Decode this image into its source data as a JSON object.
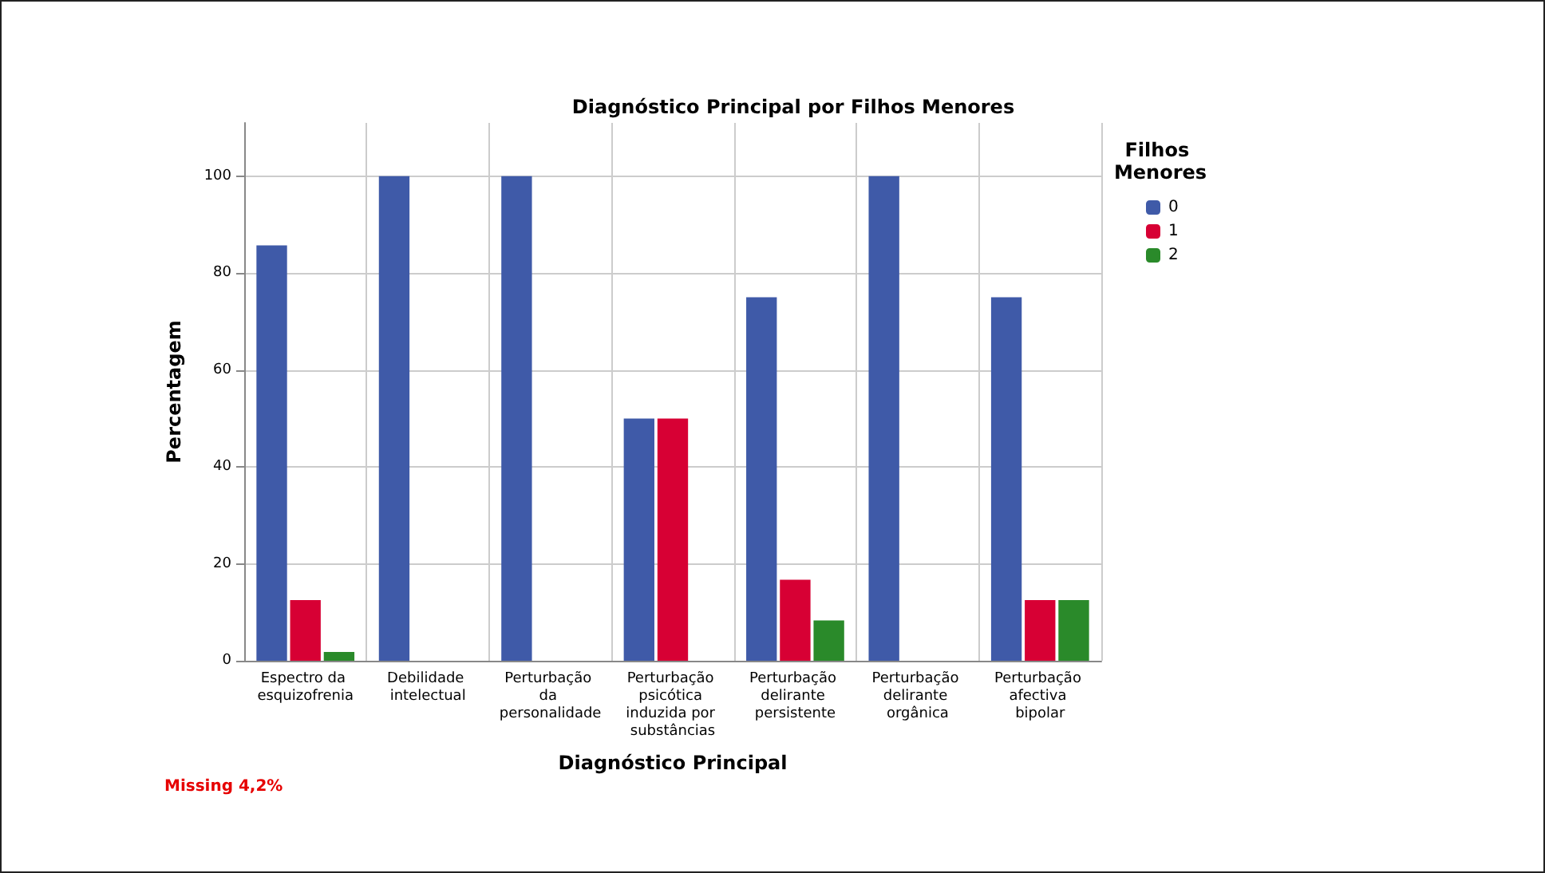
{
  "chart_data": {
    "type": "bar",
    "title": "Diagnóstico Principal por Filhos Menores",
    "xlabel": "Diagnóstico Principal",
    "ylabel": "Percentagem",
    "legend_title": "Filhos Menores",
    "categories": [
      "Espectro da esquizofrenia",
      "Debilidade intelectual",
      "Perturbação da personalidade",
      "Perturbação psicótica induzida por substâncias",
      "Perturbação delirante persistente",
      "Perturbação delirante orgânica",
      "Perturbação afectiva bipolar"
    ],
    "series": [
      {
        "name": "0",
        "color": "#3f5aa8",
        "values": [
          85.7,
          100,
          100,
          50,
          75,
          100,
          75
        ]
      },
      {
        "name": "1",
        "color": "#d70034",
        "values": [
          12.5,
          null,
          null,
          50,
          16.7,
          null,
          12.5
        ]
      },
      {
        "name": "2",
        "color": "#2a8a2a",
        "values": [
          1.8,
          null,
          null,
          null,
          8.3,
          null,
          12.5
        ]
      }
    ],
    "ylim": [
      0,
      111
    ],
    "yticks": [
      0,
      20,
      40,
      60,
      80,
      100
    ],
    "grid": true,
    "legend": "top right",
    "annotations": [
      "Missing 4,2%"
    ]
  }
}
